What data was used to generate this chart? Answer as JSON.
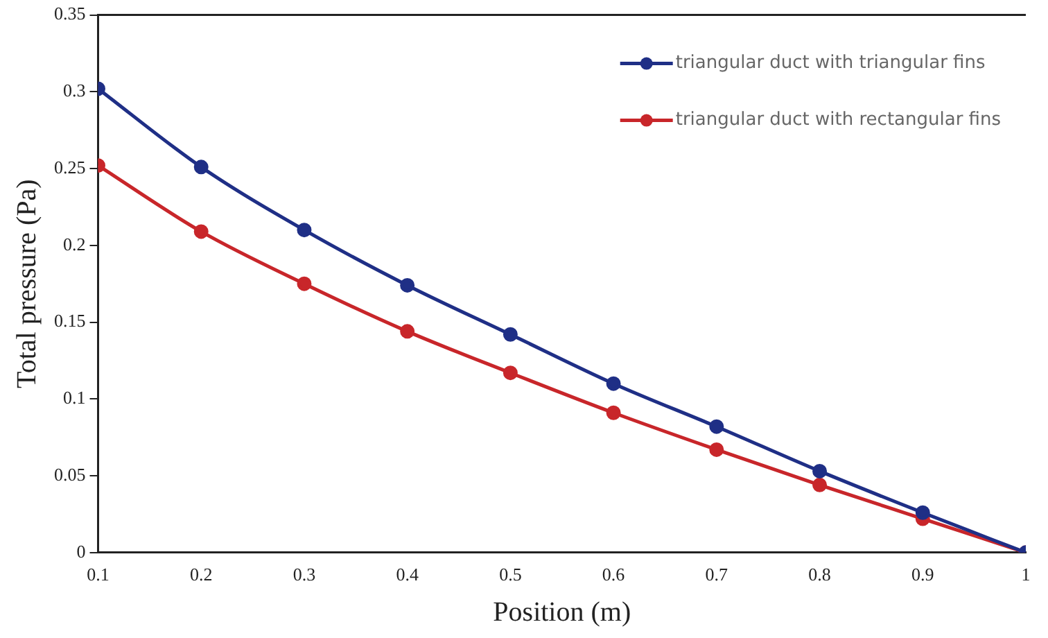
{
  "chart_data": {
    "type": "line",
    "xlabel": "Position (m)",
    "ylabel": "Total pressure (Pa)",
    "x": [
      0.1,
      0.2,
      0.3,
      0.4,
      0.5,
      0.6,
      0.7,
      0.8,
      0.9,
      1
    ],
    "series": [
      {
        "name": "triangular duct with triangular fins",
        "color": "#1f2f86",
        "values": [
          0.302,
          0.251,
          0.21,
          0.174,
          0.142,
          0.11,
          0.082,
          0.053,
          0.026,
          0
        ]
      },
      {
        "name": "triangular duct with rectangular fins",
        "color": "#c8262a",
        "values": [
          0.252,
          0.209,
          0.175,
          0.144,
          0.117,
          0.091,
          0.067,
          0.044,
          0.022,
          0
        ]
      }
    ],
    "xlim": [
      0.1,
      1
    ],
    "xticks": [
      0.1,
      0.2,
      0.3,
      0.4,
      0.5,
      0.6,
      0.7,
      0.8,
      0.9,
      1
    ],
    "ylim": [
      0,
      0.35
    ],
    "yticks": [
      0,
      0.05,
      0.1,
      0.15,
      0.2,
      0.25,
      0.3,
      0.35
    ],
    "grid": false,
    "legend": "top right",
    "marker": "circle",
    "line_style": "solid"
  }
}
